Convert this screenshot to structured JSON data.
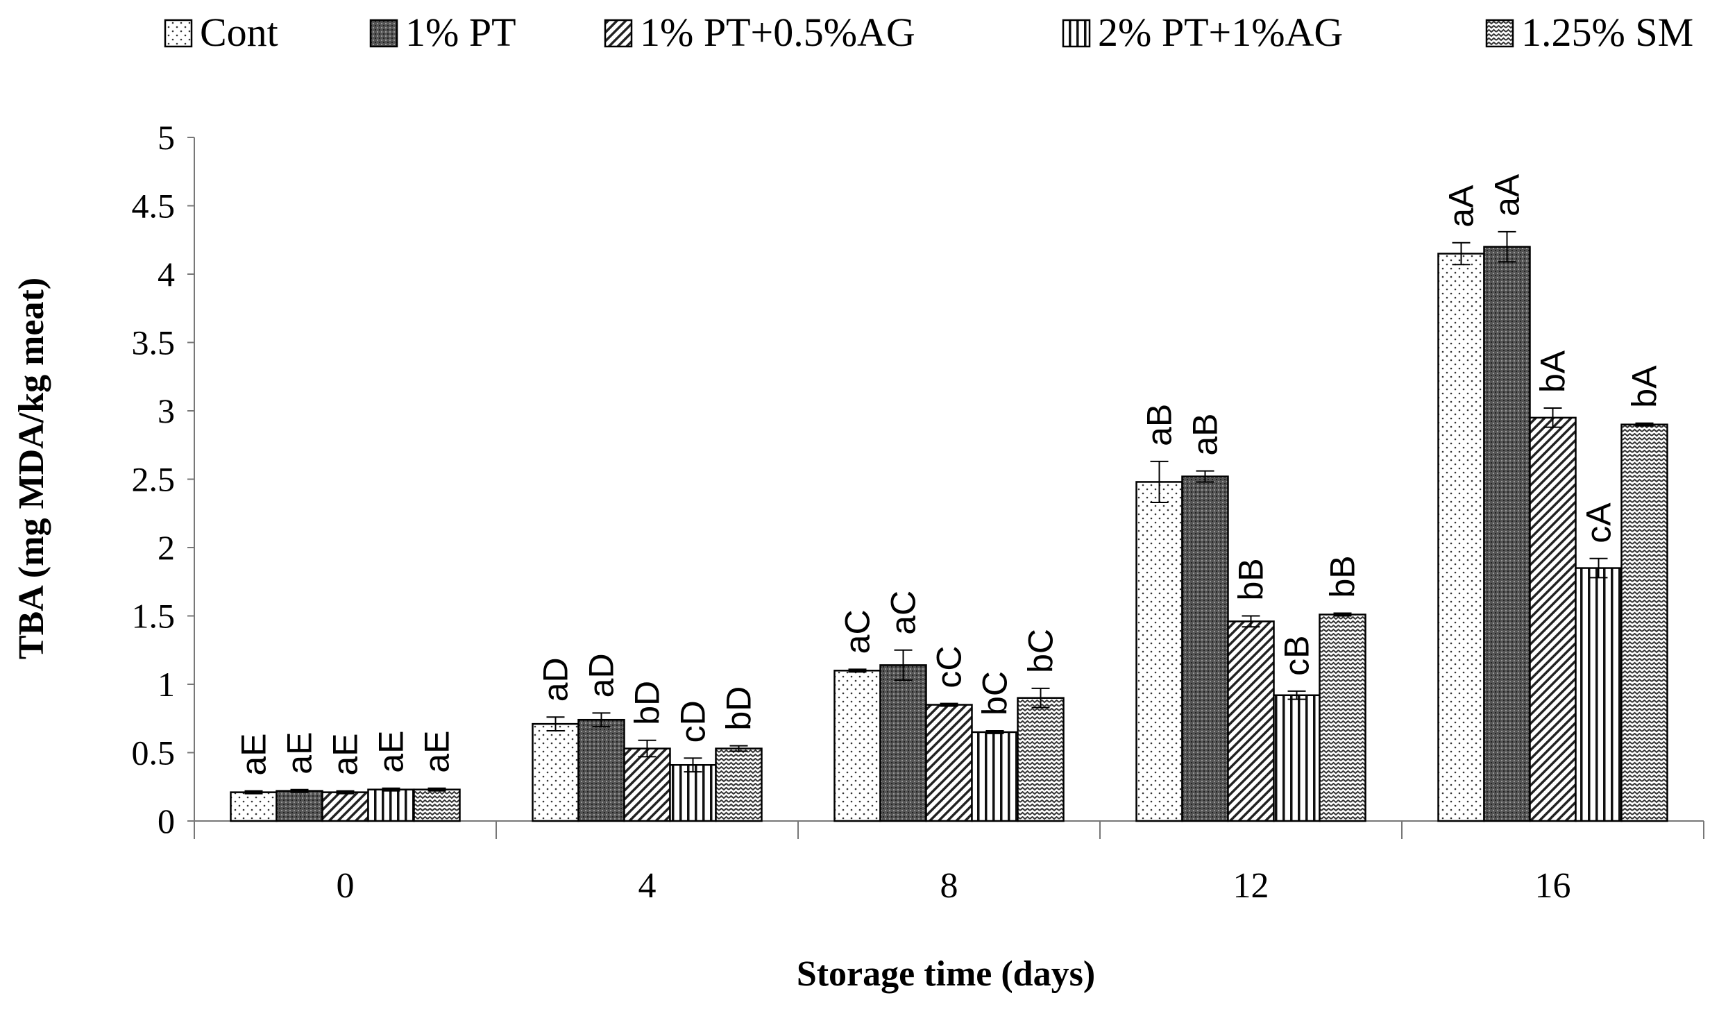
{
  "chart_data": {
    "type": "bar",
    "title": "",
    "xlabel": "Storage time (days)",
    "ylabel": "TBA (mg MDA/kg meat)",
    "ylim": [
      0,
      5
    ],
    "yticks": [
      "0",
      "0.5",
      "1",
      "1.5",
      "2",
      "2.5",
      "3",
      "3.5",
      "4",
      "4.5",
      "5"
    ],
    "categories": [
      "0",
      "4",
      "8",
      "12",
      "16"
    ],
    "grid": false,
    "legend_position": "top",
    "series": [
      {
        "name": "Cont",
        "pattern": "dots",
        "values": [
          0.21,
          0.71,
          1.1,
          2.48,
          4.15
        ],
        "errors": [
          0.01,
          0.05,
          0.01,
          0.15,
          0.08
        ],
        "labels": [
          "aE",
          "aD",
          "aC",
          "aB",
          "aA"
        ]
      },
      {
        "name": "1% PT",
        "pattern": "dense",
        "values": [
          0.22,
          0.74,
          1.14,
          2.52,
          4.2
        ],
        "errors": [
          0.01,
          0.05,
          0.11,
          0.04,
          0.11
        ],
        "labels": [
          "aE",
          "aD",
          "aC",
          "aB",
          "aA"
        ]
      },
      {
        "name": "1% PT+0.5%AG",
        "pattern": "diagonal",
        "values": [
          0.21,
          0.53,
          0.85,
          1.46,
          2.95
        ],
        "errors": [
          0.01,
          0.06,
          0.01,
          0.04,
          0.07
        ],
        "labels": [
          "aE",
          "bD",
          "cC",
          "bB",
          "bA"
        ]
      },
      {
        "name": "2% PT+1%AG",
        "pattern": "vertical",
        "values": [
          0.23,
          0.41,
          0.65,
          0.92,
          1.85
        ],
        "errors": [
          0.01,
          0.05,
          0.01,
          0.03,
          0.07
        ],
        "labels": [
          "aE",
          "cD",
          "bC",
          "cB",
          "cA"
        ]
      },
      {
        "name": "1.25% SM",
        "pattern": "zigzag",
        "values": [
          0.23,
          0.53,
          0.9,
          1.51,
          2.9
        ],
        "errors": [
          0.01,
          0.02,
          0.07,
          0.01,
          0.01
        ],
        "labels": [
          "aE",
          "bD",
          "bC",
          "bB",
          "bA"
        ]
      }
    ]
  }
}
